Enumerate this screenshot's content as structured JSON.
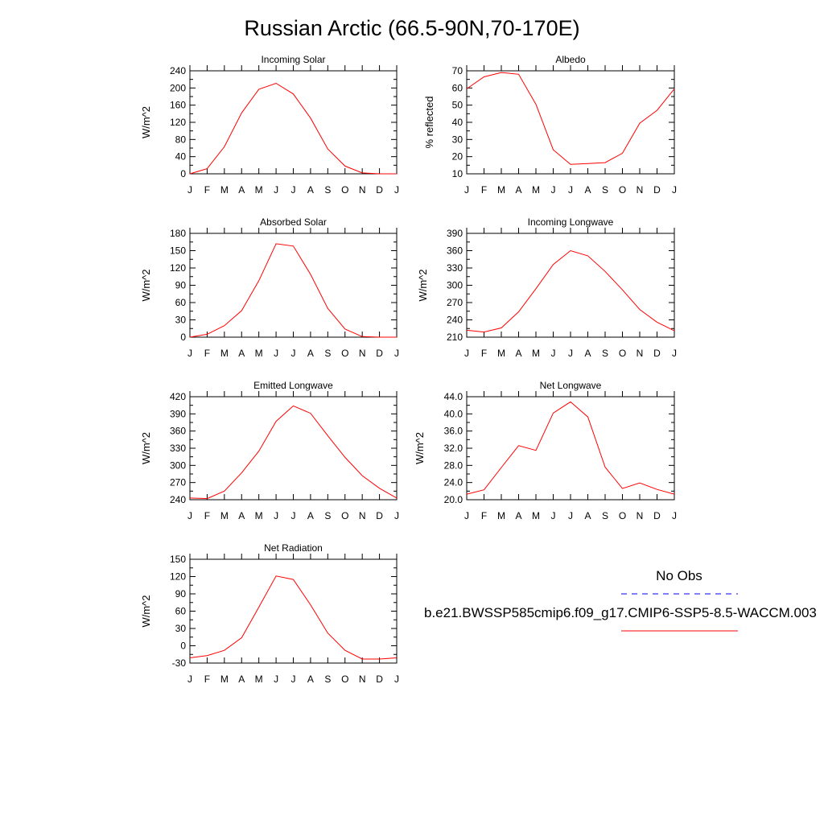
{
  "title": "Russian Arctic (66.5-90N,70-170E)",
  "legend": {
    "obs_label": "No Obs",
    "model_label": "b.e21.BWSSP585cmip6.f09_g17.CMIP6-SSP5-8.5-WACCM.003",
    "obs_color": "#0000ff",
    "model_color": "#ff0000"
  },
  "months": [
    "J",
    "F",
    "M",
    "A",
    "M",
    "J",
    "J",
    "A",
    "S",
    "O",
    "N",
    "D",
    "J"
  ],
  "chart_data": [
    {
      "type": "line",
      "title": "Incoming Solar",
      "ylabel": "W/m^2",
      "ylim": [
        0,
        240
      ],
      "yticks": [
        "0",
        "40",
        "80",
        "120",
        "160",
        "200",
        "240"
      ],
      "values": [
        0,
        12,
        63,
        142,
        197,
        211,
        186,
        130,
        58,
        18,
        2,
        0,
        0
      ]
    },
    {
      "type": "line",
      "title": "Albedo",
      "ylabel": "% reflected",
      "ylim": [
        10,
        70
      ],
      "yticks": [
        "10",
        "20",
        "30",
        "40",
        "50",
        "60",
        "70"
      ],
      "values": [
        59.5,
        66.5,
        69,
        68,
        50.5,
        24,
        15.5,
        16,
        16.5,
        22,
        39.5,
        47,
        59.5
      ]
    },
    {
      "type": "line",
      "title": "Absorbed Solar",
      "ylabel": "W/m^2",
      "ylim": [
        0,
        180
      ],
      "yticks": [
        "0",
        "30",
        "60",
        "90",
        "120",
        "150",
        "180"
      ],
      "values": [
        0,
        5,
        20,
        46,
        98,
        162,
        158,
        109,
        50,
        14,
        1,
        0,
        0
      ]
    },
    {
      "type": "line",
      "title": "Incoming Longwave",
      "ylabel": "W/m^2",
      "ylim": [
        210,
        390
      ],
      "yticks": [
        "210",
        "240",
        "270",
        "300",
        "330",
        "360",
        "390"
      ],
      "values": [
        222,
        219,
        226,
        254,
        294,
        336,
        360,
        351,
        324,
        292,
        258,
        236,
        221
      ]
    },
    {
      "type": "line",
      "title": "Emitted Longwave",
      "ylabel": "W/m^2",
      "ylim": [
        240,
        420
      ],
      "yticks": [
        "240",
        "270",
        "300",
        "330",
        "360",
        "390",
        "420"
      ],
      "values": [
        243,
        242,
        255,
        287,
        325,
        377,
        404,
        391,
        352,
        314,
        282,
        260,
        243
      ]
    },
    {
      "type": "line",
      "title": "Net Longwave",
      "ylabel": "W/m^2",
      "ylim": [
        20,
        44
      ],
      "yticks": [
        "20.0",
        "24.0",
        "28.0",
        "32.0",
        "36.0",
        "40.0",
        "44.0"
      ],
      "values": [
        21.3,
        22.3,
        27.5,
        32.6,
        31.5,
        40.2,
        42.8,
        39.3,
        27.6,
        22.6,
        23.9,
        22.4,
        21.3
      ]
    },
    {
      "type": "line",
      "title": "Net Radiation",
      "ylabel": "W/m^2",
      "ylim": [
        -30,
        150
      ],
      "yticks": [
        "-30",
        "0",
        "30",
        "60",
        "90",
        "120",
        "150"
      ],
      "values": [
        -21,
        -17,
        -8,
        14,
        67,
        121,
        115,
        71,
        22,
        -8,
        -23,
        -23,
        -21
      ]
    }
  ]
}
